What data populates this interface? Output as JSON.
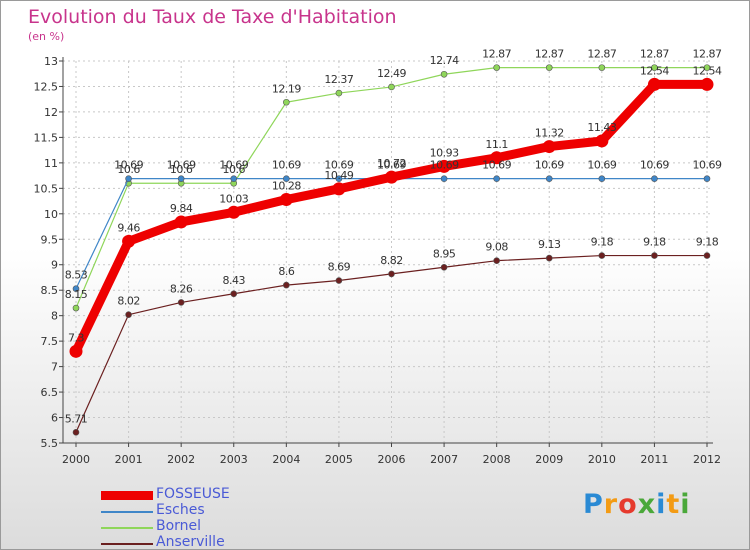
{
  "colors": {
    "title": "#c8348c",
    "legend_text": "#4a5ad6",
    "axis": "#444444",
    "grid": "#c8c8c8"
  },
  "logo": {
    "letters": [
      "P",
      "r",
      "o",
      "x",
      "i",
      "t",
      "i"
    ],
    "colors": [
      "#2a8ad4",
      "#f39b14",
      "#e63a2d",
      "#4aa83a",
      "#2a8ad4",
      "#f39b14",
      "#4aa83a"
    ]
  },
  "chart_data": {
    "type": "line",
    "title": "Evolution du Taux de Taxe d'Habitation",
    "ylabel": "(en %)",
    "xlabel": "",
    "ylim": [
      5.5,
      13
    ],
    "yticks": [
      "5.5",
      "6",
      "6.5",
      "7",
      "7.5",
      "8",
      "8.5",
      "9",
      "9.5",
      "10",
      "10.5",
      "11",
      "11.5",
      "12",
      "12.5",
      "13"
    ],
    "categories": [
      "2000",
      "2001",
      "2002",
      "2003",
      "2004",
      "2005",
      "2006",
      "2007",
      "2008",
      "2009",
      "2010",
      "2011",
      "2012"
    ],
    "grid": true,
    "series": [
      {
        "name": "FOSSEUSE",
        "color": "#ee0000",
        "thick": true,
        "values": [
          7.3,
          9.46,
          9.84,
          10.03,
          10.28,
          10.49,
          10.72,
          10.93,
          11.1,
          11.32,
          11.43,
          12.54,
          12.54
        ],
        "labels": [
          "7.3",
          "9.46",
          "9.84",
          "10.03",
          "10.28",
          "10.49",
          "10.72",
          "10.93",
          "11.1",
          "11.32",
          "11.43",
          "12.54",
          "12.54"
        ]
      },
      {
        "name": "Esches",
        "color": "#3f86c8",
        "thick": false,
        "values": [
          8.53,
          10.69,
          10.69,
          10.69,
          10.69,
          10.69,
          10.69,
          10.69,
          10.69,
          10.69,
          10.69,
          10.69,
          10.69
        ],
        "labels": [
          "8.53",
          "10.69",
          "10.69",
          "10.69",
          "10.69",
          "10.69",
          "10.69",
          "10.69",
          "10.69",
          "10.69",
          "10.69",
          "10.69",
          "10.69"
        ]
      },
      {
        "name": "Bornel",
        "color": "#8fd65a",
        "thick": false,
        "values": [
          8.15,
          10.6,
          10.6,
          10.6,
          12.19,
          12.37,
          12.49,
          12.74,
          12.87,
          12.87,
          12.87,
          12.87,
          12.87
        ],
        "labels": [
          "8.15",
          "10.6",
          "10.6",
          "10.6",
          "12.19",
          "12.37",
          "12.49",
          "12.74",
          "12.87",
          "12.87",
          "12.87",
          "12.87",
          "12.87"
        ]
      },
      {
        "name": "Anserville",
        "color": "#6b2020",
        "thick": false,
        "values": [
          5.71,
          8.02,
          8.26,
          8.43,
          8.6,
          8.69,
          8.82,
          8.95,
          9.08,
          9.13,
          9.18,
          9.18,
          9.18
        ],
        "labels": [
          "5.71",
          "8.02",
          "8.26",
          "8.43",
          "8.6",
          "8.69",
          "8.82",
          "8.95",
          "9.08",
          "9.13",
          "9.18",
          "9.18",
          "9.18"
        ]
      }
    ]
  }
}
